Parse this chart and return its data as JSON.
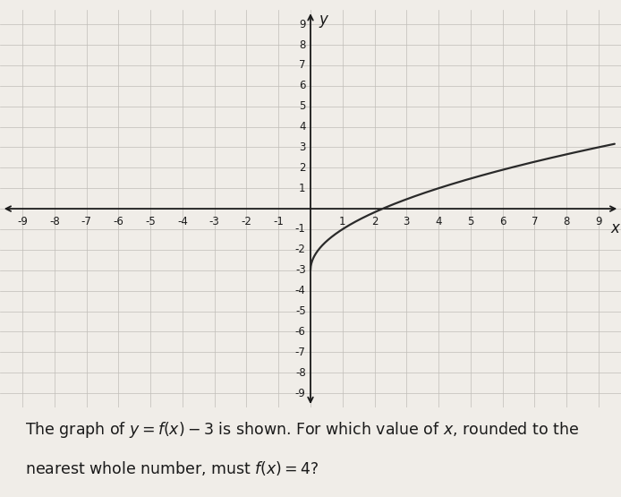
{
  "xlabel": "x",
  "ylabel": "y",
  "xlim": [
    -9.7,
    9.7
  ],
  "ylim": [
    -9.7,
    9.7
  ],
  "xticks": [
    -9,
    -8,
    -7,
    -6,
    -5,
    -4,
    -3,
    -2,
    -1,
    1,
    2,
    3,
    4,
    5,
    6,
    7,
    8,
    9
  ],
  "yticks": [
    -9,
    -8,
    -7,
    -6,
    -5,
    -4,
    -3,
    -2,
    -1,
    1,
    2,
    3,
    4,
    5,
    6,
    7,
    8,
    9
  ],
  "curve_color": "#2a2a2a",
  "curve_linewidth": 1.6,
  "grid_color": "#c0bdb8",
  "grid_linewidth": 0.5,
  "background_color": "#f0ede8",
  "text_color": "#1a1a1a",
  "caption_line1": "The graph of $y = f(x) - 3$ is shown. For which value of $x$, rounded to the",
  "caption_line2": "nearest whole number, must $f(x) = 4$?",
  "caption_fontsize": 12.5,
  "axis_label_fontsize": 12,
  "tick_fontsize": 8.5,
  "curve_x_start": 0,
  "curve_x_end": 9.5,
  "arrow_lw": 1.3
}
